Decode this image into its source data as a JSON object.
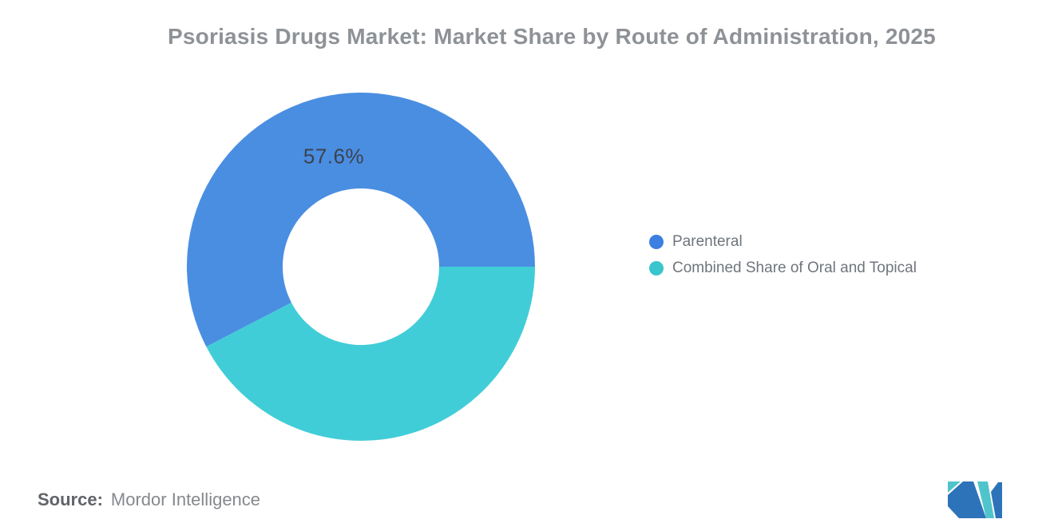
{
  "title": {
    "text": "Psoriasis Drugs Market: Market Share by Route of Administration, 2025",
    "color": "#8e9297"
  },
  "chart_data": {
    "type": "pie",
    "subtype": "donut",
    "title": "Psoriasis Drugs Market: Market Share by Route of Administration, 2025",
    "categories": [
      "Parenteral",
      "Combined Share of Oral and Topical"
    ],
    "values": [
      57.6,
      42.4
    ],
    "colors": [
      "#4a8ee2",
      "#41cdd7"
    ],
    "visible_data_label": "57.6%",
    "data_label_color": "#3c434c",
    "start_angle_deg": 0,
    "direction": "counterclockwise",
    "inner_radius_ratio": 0.45,
    "legend_position": "right",
    "grid": false
  },
  "legend": {
    "text_color": "#6f757c",
    "items": [
      {
        "label": "Parenteral",
        "color": "#3b7fe0"
      },
      {
        "label": "Combined Share of Oral and Topical",
        "color": "#38c5cd"
      }
    ]
  },
  "source": {
    "prefix": "Source:",
    "text": "Mordor Intelligence"
  },
  "logo": {
    "name": "mordor-intelligence-logo",
    "teal": "#50c4cb",
    "blue": "#2d73b9"
  }
}
